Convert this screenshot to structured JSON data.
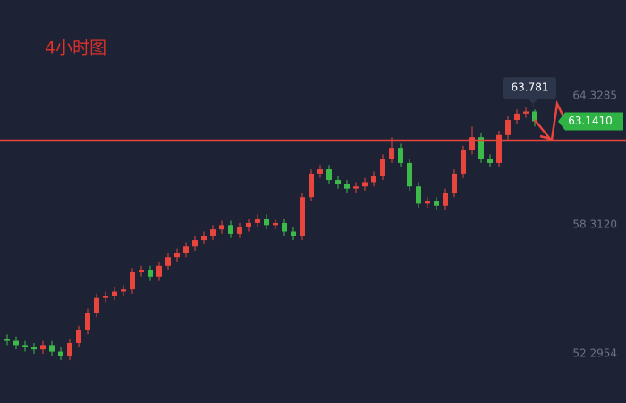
{
  "chart_data": {
    "type": "candlestick",
    "title": "4小时图",
    "title_color": "#e0302a",
    "up_color": "#e8453c",
    "down_color": "#3dbb4a",
    "ylim": [
      50.0,
      68.8
    ],
    "yticks": [
      64.3285,
      {
        "value": 58.312,
        "label": "58.3120"
      },
      52.2954
    ],
    "hline": 62.24,
    "high_marker": 63.781,
    "last_price": {
      "value": 63.141,
      "label": "63.1410"
    },
    "open": [
      53.0,
      52.9,
      52.7,
      52.6,
      52.5,
      52.7,
      52.4,
      52.2,
      52.8,
      53.4,
      54.2,
      54.9,
      55.0,
      55.2,
      55.3,
      56.1,
      56.2,
      55.9,
      56.4,
      56.8,
      57.0,
      57.3,
      57.6,
      57.8,
      58.1,
      58.3,
      57.9,
      58.2,
      58.4,
      58.6,
      58.3,
      58.4,
      58.0,
      57.8,
      59.6,
      60.7,
      60.9,
      60.4,
      60.2,
      60.0,
      60.1,
      60.3,
      60.6,
      61.4,
      61.9,
      61.2,
      60.1,
      59.3,
      59.4,
      59.2,
      59.8,
      60.7,
      61.8,
      62.4,
      61.4,
      61.2,
      62.5,
      63.2,
      63.5,
      63.6
    ],
    "high": [
      53.2,
      53.1,
      52.9,
      52.8,
      52.9,
      52.9,
      52.6,
      53.0,
      53.6,
      54.4,
      55.1,
      55.2,
      55.4,
      55.5,
      56.3,
      56.4,
      56.4,
      56.6,
      57.0,
      57.2,
      57.5,
      57.8,
      58.0,
      58.3,
      58.5,
      58.5,
      58.4,
      58.6,
      58.8,
      58.8,
      58.6,
      58.6,
      58.2,
      59.8,
      60.9,
      61.1,
      61.1,
      60.6,
      60.4,
      60.3,
      60.5,
      60.8,
      61.6,
      62.4,
      62.1,
      61.4,
      60.3,
      59.6,
      59.6,
      60.0,
      60.9,
      62.0,
      62.9,
      62.6,
      61.6,
      62.7,
      63.4,
      63.7,
      63.781,
      63.7
    ],
    "low": [
      52.7,
      52.5,
      52.4,
      52.3,
      52.3,
      52.2,
      52.0,
      52.0,
      52.6,
      53.2,
      54.0,
      54.7,
      54.8,
      55.0,
      55.1,
      55.9,
      55.7,
      55.7,
      56.2,
      56.6,
      56.8,
      57.1,
      57.4,
      57.6,
      57.9,
      57.7,
      57.7,
      58.0,
      58.2,
      58.1,
      58.1,
      57.8,
      57.6,
      57.6,
      59.4,
      60.5,
      60.2,
      60.0,
      59.8,
      59.8,
      59.9,
      60.1,
      60.4,
      61.2,
      61.0,
      59.9,
      59.1,
      59.1,
      59.0,
      59.0,
      59.6,
      60.5,
      61.6,
      61.2,
      61.0,
      61.0,
      62.3,
      63.0,
      63.3,
      62.9
    ],
    "close": [
      52.9,
      52.7,
      52.6,
      52.5,
      52.7,
      52.4,
      52.2,
      52.8,
      53.4,
      54.2,
      54.9,
      55.0,
      55.2,
      55.3,
      56.1,
      56.2,
      55.9,
      56.4,
      56.8,
      57.0,
      57.3,
      57.6,
      57.8,
      58.1,
      58.3,
      57.9,
      58.2,
      58.4,
      58.6,
      58.3,
      58.4,
      58.0,
      57.8,
      59.6,
      60.7,
      60.9,
      60.4,
      60.2,
      60.0,
      60.1,
      60.3,
      60.6,
      61.4,
      61.9,
      61.2,
      60.1,
      59.3,
      59.4,
      59.2,
      59.8,
      60.7,
      61.8,
      62.4,
      61.4,
      61.2,
      62.5,
      63.2,
      63.5,
      63.6,
      63.14
    ]
  }
}
